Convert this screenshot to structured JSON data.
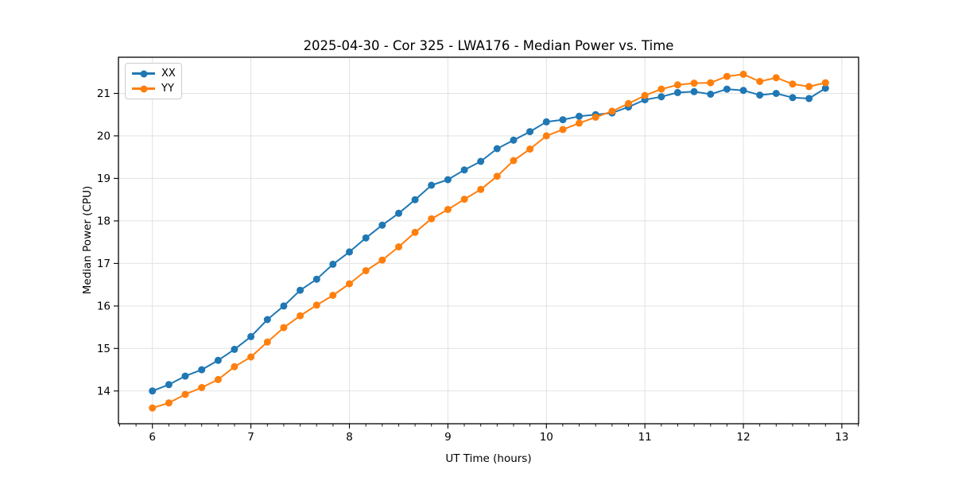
{
  "figure": {
    "background": "#ffffff",
    "spine_color": "#000000",
    "grid_color": "#e2e2e2"
  },
  "chart_data": {
    "type": "line",
    "title": "2025-04-30 - Cor 325 - LWA176 - Median Power vs. Time",
    "xlabel": "UT Time (hours)",
    "ylabel": "Median Power (CPU)",
    "xlim": [
      5.655,
      13.17
    ],
    "ylim": [
      13.23,
      21.85
    ],
    "x_ticks": [
      6,
      7,
      8,
      9,
      10,
      11,
      12,
      13
    ],
    "y_ticks": [
      14,
      15,
      16,
      17,
      18,
      19,
      20,
      21
    ],
    "x_minor_tick_step_hours": 0.1667,
    "grid": true,
    "legend_position": "upper left",
    "marker": "o",
    "x": [
      6.0,
      6.167,
      6.333,
      6.5,
      6.667,
      6.833,
      7.0,
      7.167,
      7.333,
      7.5,
      7.667,
      7.833,
      8.0,
      8.167,
      8.333,
      8.5,
      8.667,
      8.833,
      9.0,
      9.167,
      9.333,
      9.5,
      9.667,
      9.833,
      10.0,
      10.167,
      10.333,
      10.5,
      10.667,
      10.833,
      11.0,
      11.167,
      11.333,
      11.5,
      11.667,
      11.833,
      12.0,
      12.167,
      12.333,
      12.5,
      12.667,
      12.833
    ],
    "series": [
      {
        "name": "XX",
        "color": "#1f77b4",
        "values": [
          14.0,
          14.15,
          14.35,
          14.5,
          14.72,
          14.98,
          15.28,
          15.68,
          16.0,
          16.37,
          16.63,
          16.98,
          17.27,
          17.6,
          17.9,
          18.18,
          18.5,
          18.84,
          18.97,
          19.2,
          19.4,
          19.7,
          19.9,
          20.1,
          20.33,
          20.38,
          20.46,
          20.5,
          20.54,
          20.68,
          20.85,
          20.92,
          21.02,
          21.04,
          20.98,
          21.1,
          21.07,
          20.96,
          21.0,
          20.9,
          20.88,
          21.12
        ]
      },
      {
        "name": "YY",
        "color": "#ff7f0e",
        "values": [
          13.6,
          13.72,
          13.92,
          14.08,
          14.27,
          14.57,
          14.8,
          15.15,
          15.49,
          15.77,
          16.02,
          16.25,
          16.52,
          16.83,
          17.08,
          17.39,
          17.73,
          18.05,
          18.27,
          18.51,
          18.74,
          19.05,
          19.42,
          19.69,
          20.0,
          20.15,
          20.3,
          20.44,
          20.58,
          20.76,
          20.95,
          21.1,
          21.2,
          21.24,
          21.25,
          21.4,
          21.45,
          21.28,
          21.37,
          21.22,
          21.16,
          21.25
        ]
      }
    ]
  }
}
